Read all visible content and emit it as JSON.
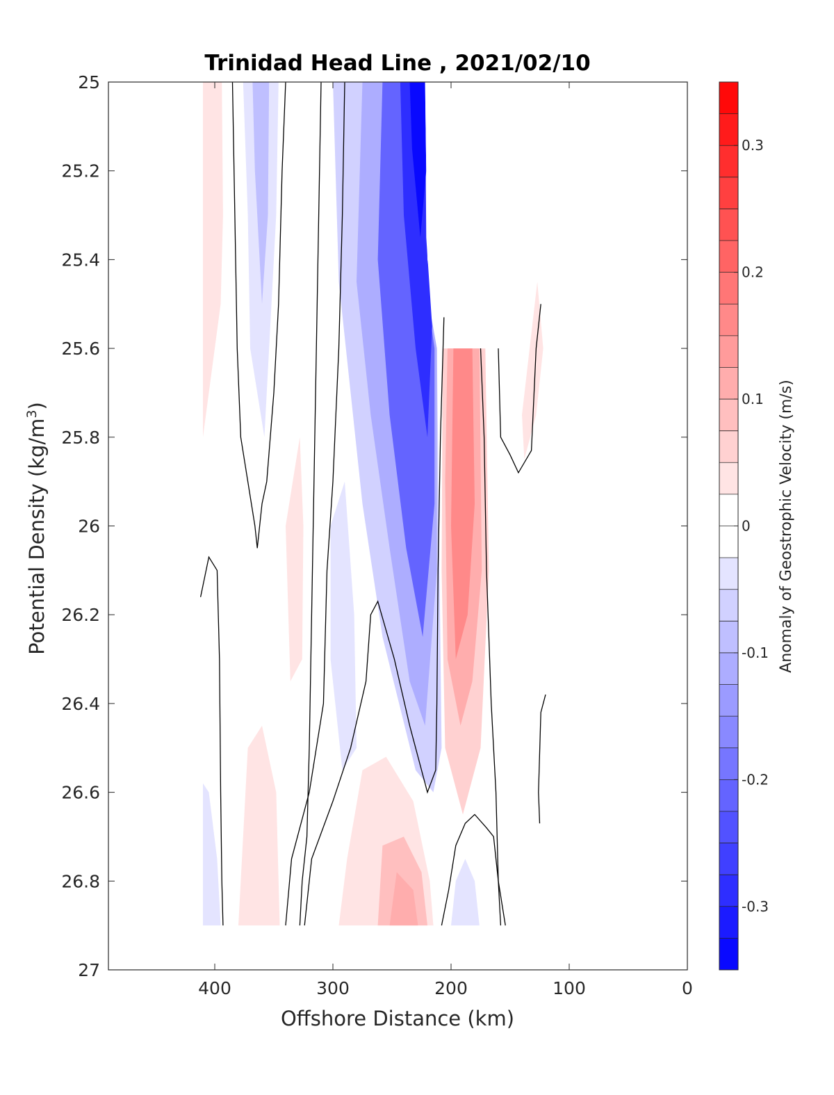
{
  "chart_data": {
    "type": "contour",
    "title": "Trinidad Head Line , 2021/02/10",
    "xlabel": "Offshore Distance (km)",
    "ylabel_main": "Potential Density (kg/m",
    "ylabel_sup": "3",
    "ylabel_close": ")",
    "colorbar_label": "Anomaly of Geostrophic Velocity (m/s)",
    "xlim": [
      490,
      0
    ],
    "x_reversed": true,
    "ylim": [
      25,
      27
    ],
    "y_reversed": true,
    "x_ticks": [
      400,
      300,
      200,
      100,
      0
    ],
    "x_tick_labels": [
      "400",
      "300",
      "200",
      "100",
      "0"
    ],
    "y_ticks": [
      25,
      25.2,
      25.4,
      25.6,
      25.8,
      26,
      26.2,
      26.4,
      26.6,
      26.8,
      27
    ],
    "y_tick_labels": [
      "25",
      "25.2",
      "25.4",
      "25.6",
      "25.8",
      "26",
      "26.2",
      "26.4",
      "26.6",
      "26.8",
      "27"
    ],
    "colorbar": {
      "range": [
        -0.35,
        0.35
      ],
      "levels": 28,
      "ticks": [
        0.3,
        0.2,
        0.1,
        0,
        -0.1,
        -0.2,
        -0.3
      ],
      "tick_labels": [
        "0.3",
        "0.2",
        "0.1",
        "0",
        "-0.1",
        "-0.2",
        "-0.3"
      ],
      "colormap": "blue-white-red",
      "negative_color": "#0000ff",
      "positive_color": "#ff0000"
    },
    "filled_regions": [
      {
        "value": 0.04,
        "points": [
          [
            410,
            25
          ],
          [
            394,
            25
          ],
          [
            393,
            25.3
          ],
          [
            395,
            25.5
          ],
          [
            400,
            25.6
          ],
          [
            410,
            25.8
          ]
        ]
      },
      {
        "value": -0.05,
        "points": [
          [
            376,
            25
          ],
          [
            346,
            25
          ],
          [
            348,
            25.3
          ],
          [
            352,
            25.5
          ],
          [
            358,
            25.8
          ],
          [
            370,
            25.6
          ],
          [
            372,
            25.3
          ]
        ]
      },
      {
        "value": -0.09,
        "points": [
          [
            368,
            25
          ],
          [
            354,
            25
          ],
          [
            355,
            25.3
          ],
          [
            360,
            25.5
          ],
          [
            366,
            25.2
          ]
        ]
      },
      {
        "value": -0.07,
        "points": [
          [
            300,
            25
          ],
          [
            222,
            25
          ],
          [
            222,
            25.45
          ],
          [
            212,
            25.6
          ],
          [
            210,
            26.05
          ],
          [
            208,
            26.5
          ],
          [
            215,
            26.6
          ],
          [
            230,
            26.55
          ],
          [
            258,
            26.25
          ],
          [
            275,
            25.95
          ],
          [
            285,
            25.7
          ],
          [
            295,
            25.45
          ]
        ]
      },
      {
        "value": -0.12,
        "points": [
          [
            275,
            25
          ],
          [
            222,
            25
          ],
          [
            222,
            25.45
          ],
          [
            212,
            25.6
          ],
          [
            212,
            26.1
          ],
          [
            222,
            26.45
          ],
          [
            235,
            26.35
          ],
          [
            252,
            26.05
          ],
          [
            268,
            25.75
          ],
          [
            280,
            25.45
          ]
        ]
      },
      {
        "value": -0.2,
        "points": [
          [
            258,
            25
          ],
          [
            222,
            25
          ],
          [
            222,
            25.45
          ],
          [
            214,
            25.6
          ],
          [
            214,
            25.95
          ],
          [
            224,
            26.25
          ],
          [
            238,
            26.05
          ],
          [
            252,
            25.75
          ],
          [
            262,
            25.4
          ]
        ]
      },
      {
        "value": -0.29,
        "points": [
          [
            243,
            25
          ],
          [
            222,
            25
          ],
          [
            221,
            25.35
          ],
          [
            216,
            25.55
          ],
          [
            220,
            25.8
          ],
          [
            230,
            25.6
          ],
          [
            240,
            25.3
          ]
        ]
      },
      {
        "value": -0.35,
        "points": [
          [
            235,
            25
          ],
          [
            222,
            25
          ],
          [
            221,
            25.2
          ],
          [
            226,
            25.35
          ],
          [
            233,
            25.15
          ]
        ]
      },
      {
        "value": -0.04,
        "points": [
          [
            302,
            26.0
          ],
          [
            290,
            25.9
          ],
          [
            282,
            26.2
          ],
          [
            280,
            26.5
          ],
          [
            292,
            26.55
          ],
          [
            302,
            26.3
          ]
        ]
      },
      {
        "value": 0.05,
        "points": [
          [
            207,
            25.6
          ],
          [
            171,
            25.6
          ],
          [
            168,
            26.1
          ],
          [
            175,
            26.5
          ],
          [
            190,
            26.65
          ],
          [
            205,
            26.5
          ],
          [
            208,
            26.1
          ]
        ]
      },
      {
        "value": 0.11,
        "points": [
          [
            203,
            25.6
          ],
          [
            176,
            25.6
          ],
          [
            174,
            26.1
          ],
          [
            182,
            26.35
          ],
          [
            192,
            26.45
          ],
          [
            203,
            26.3
          ],
          [
            205,
            25.9
          ]
        ]
      },
      {
        "value": 0.16,
        "points": [
          [
            198,
            25.6
          ],
          [
            182,
            25.6
          ],
          [
            180,
            25.95
          ],
          [
            186,
            26.2
          ],
          [
            196,
            26.3
          ],
          [
            200,
            26.0
          ]
        ]
      },
      {
        "value": 0.04,
        "points": [
          [
            140,
            25.75
          ],
          [
            127,
            25.45
          ],
          [
            122,
            25.6
          ],
          [
            128,
            25.75
          ],
          [
            138,
            25.85
          ]
        ]
      },
      {
        "value": 0.04,
        "points": [
          [
            340,
            26.0
          ],
          [
            328,
            25.8
          ],
          [
            325,
            26.0
          ],
          [
            326,
            26.3
          ],
          [
            336,
            26.35
          ]
        ]
      },
      {
        "value": 0.04,
        "points": [
          [
            380,
            26.9
          ],
          [
            345,
            26.9
          ],
          [
            348,
            26.6
          ],
          [
            360,
            26.45
          ],
          [
            372,
            26.5
          ]
        ]
      },
      {
        "value": 0.04,
        "points": [
          [
            295,
            26.9
          ],
          [
            215,
            26.9
          ],
          [
            218,
            26.8
          ],
          [
            232,
            26.62
          ],
          [
            255,
            26.52
          ],
          [
            275,
            26.55
          ],
          [
            288,
            26.75
          ]
        ]
      },
      {
        "value": 0.08,
        "points": [
          [
            262,
            26.9
          ],
          [
            220,
            26.9
          ],
          [
            225,
            26.78
          ],
          [
            240,
            26.7
          ],
          [
            258,
            26.72
          ]
        ]
      },
      {
        "value": 0.11,
        "points": [
          [
            252,
            26.9
          ],
          [
            228,
            26.9
          ],
          [
            232,
            26.82
          ],
          [
            246,
            26.78
          ]
        ]
      },
      {
        "value": -0.04,
        "points": [
          [
            410,
            26.9
          ],
          [
            395,
            26.9
          ],
          [
            398,
            26.75
          ],
          [
            405,
            26.6
          ],
          [
            410,
            26.58
          ]
        ]
      },
      {
        "value": -0.04,
        "points": [
          [
            200,
            26.9
          ],
          [
            176,
            26.9
          ],
          [
            180,
            26.8
          ],
          [
            188,
            26.75
          ],
          [
            196,
            26.8
          ]
        ]
      }
    ],
    "white_regions": [
      {
        "points": [
          [
            222,
            25
          ],
          [
            160,
            25
          ],
          [
            160,
            25.6
          ],
          [
            212,
            25.6
          ],
          [
            214,
            25.5
          ],
          [
            220,
            25.4
          ]
        ]
      }
    ],
    "zero_contours": [
      [
        [
          385,
          25
        ],
        [
          383,
          25.3
        ],
        [
          381,
          25.6
        ],
        [
          378,
          25.8
        ],
        [
          372,
          25.9
        ],
        [
          366,
          26.0
        ],
        [
          364,
          26.05
        ],
        [
          360,
          25.95
        ],
        [
          356,
          25.9
        ],
        [
          350,
          25.7
        ],
        [
          346,
          25.5
        ],
        [
          343,
          25.2
        ],
        [
          340,
          25
        ]
      ],
      [
        [
          310,
          25
        ],
        [
          312,
          25.3
        ],
        [
          314,
          25.6
        ],
        [
          316,
          25.9
        ],
        [
          318,
          26.2
        ],
        [
          320,
          26.5
        ],
        [
          322,
          26.7
        ],
        [
          326,
          26.8
        ],
        [
          328,
          26.9
        ]
      ],
      [
        [
          290,
          25
        ],
        [
          292,
          25.3
        ],
        [
          295,
          25.6
        ],
        [
          300,
          25.9
        ],
        [
          305,
          26.1
        ],
        [
          308,
          26.4
        ],
        [
          320,
          26.6
        ],
        [
          335,
          26.75
        ],
        [
          340,
          26.9
        ]
      ],
      [
        [
          206,
          25.53
        ],
        [
          209,
          25.8
        ],
        [
          211,
          26.1
        ],
        [
          212,
          26.4
        ],
        [
          213,
          26.55
        ],
        [
          220,
          26.6
        ],
        [
          235,
          26.45
        ],
        [
          248,
          26.3
        ],
        [
          262,
          26.17
        ],
        [
          268,
          26.2
        ],
        [
          272,
          26.35
        ],
        [
          285,
          26.5
        ],
        [
          300,
          26.62
        ],
        [
          318,
          26.75
        ],
        [
          324,
          26.9
        ]
      ],
      [
        [
          175,
          25.6
        ],
        [
          172,
          25.8
        ],
        [
          170,
          26.1
        ],
        [
          166,
          26.4
        ],
        [
          162,
          26.6
        ],
        [
          160,
          26.8
        ],
        [
          154,
          26.9
        ]
      ],
      [
        [
          158,
          26.9
        ],
        [
          160,
          26.8
        ],
        [
          164,
          26.7
        ],
        [
          170,
          26.68
        ],
        [
          180,
          26.65
        ],
        [
          188,
          26.67
        ],
        [
          196,
          26.72
        ],
        [
          202,
          26.82
        ],
        [
          208,
          26.9
        ]
      ],
      [
        [
          160,
          25.6
        ],
        [
          158,
          25.8
        ],
        [
          150,
          25.84
        ],
        [
          143,
          25.88
        ],
        [
          132,
          25.83
        ],
        [
          128,
          25.6
        ],
        [
          124,
          25.5
        ]
      ],
      [
        [
          412,
          26.16
        ],
        [
          405,
          26.07
        ],
        [
          398,
          26.1
        ],
        [
          396,
          26.3
        ],
        [
          395,
          26.6
        ],
        [
          394,
          26.8
        ],
        [
          393,
          26.9
        ]
      ],
      [
        [
          120,
          26.38
        ],
        [
          124,
          26.42
        ],
        [
          126,
          26.6
        ],
        [
          125,
          26.67
        ]
      ]
    ]
  }
}
